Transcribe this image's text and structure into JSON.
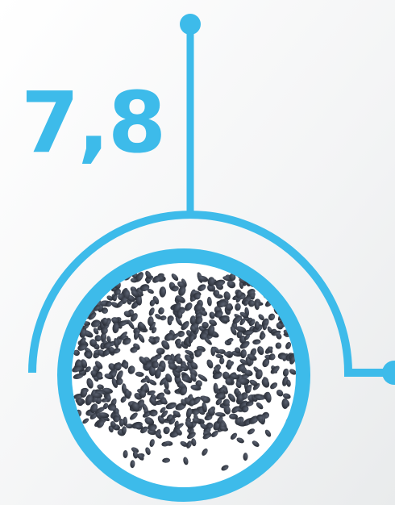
{
  "value_text": "7,8"
}
